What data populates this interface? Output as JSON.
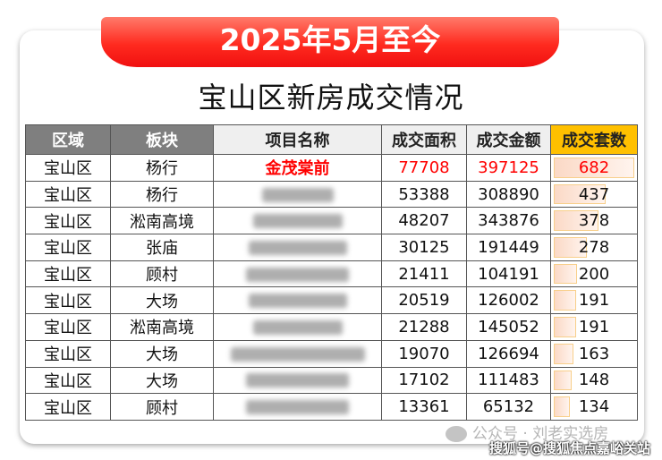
{
  "banner": "2025年5月至今",
  "title": "宝山区新房成交情况",
  "columns": [
    "区域",
    "板块",
    "项目名称",
    "成交面积",
    "成交金额",
    "成交套数"
  ],
  "rows": [
    {
      "district": "宝山区",
      "area": "杨行",
      "project": "金茂棠前",
      "sqm": "77708",
      "amount": "397125",
      "units": "682",
      "units_value": 682,
      "highlight": true
    },
    {
      "district": "宝山区",
      "area": "杨行",
      "project": "",
      "sqm": "53388",
      "amount": "308890",
      "units": "437",
      "units_value": 437
    },
    {
      "district": "宝山区",
      "area": "淞南高境",
      "project": "",
      "sqm": "48207",
      "amount": "343876",
      "units": "378",
      "units_value": 378
    },
    {
      "district": "宝山区",
      "area": "张庙",
      "project": "",
      "sqm": "30125",
      "amount": "191449",
      "units": "278",
      "units_value": 278
    },
    {
      "district": "宝山区",
      "area": "顾村",
      "project": "",
      "sqm": "21411",
      "amount": "104191",
      "units": "200",
      "units_value": 200
    },
    {
      "district": "宝山区",
      "area": "大场",
      "project": "",
      "sqm": "20519",
      "amount": "126002",
      "units": "191",
      "units_value": 191
    },
    {
      "district": "宝山区",
      "area": "淞南高境",
      "project": "",
      "sqm": "21288",
      "amount": "145052",
      "units": "191",
      "units_value": 191
    },
    {
      "district": "宝山区",
      "area": "大场",
      "project": "",
      "sqm": "19070",
      "amount": "126694",
      "units": "163",
      "units_value": 163
    },
    {
      "district": "宝山区",
      "area": "大场",
      "project": "",
      "sqm": "17102",
      "amount": "111483",
      "units": "148",
      "units_value": 148
    },
    {
      "district": "宝山区",
      "area": "顾村",
      "project": "",
      "sqm": "13361",
      "amount": "65132",
      "units": "134",
      "units_value": 134
    }
  ],
  "watermark_wechat": "公众号 · 刘老实选房",
  "watermark_sohu": "搜狐号@搜狐焦点嘉峪关站",
  "colors": {
    "banner": "#ff2a1f",
    "highlight_text": "#ff0000",
    "units_header": "#ffc000",
    "header_dark": "#7f7f7f"
  }
}
